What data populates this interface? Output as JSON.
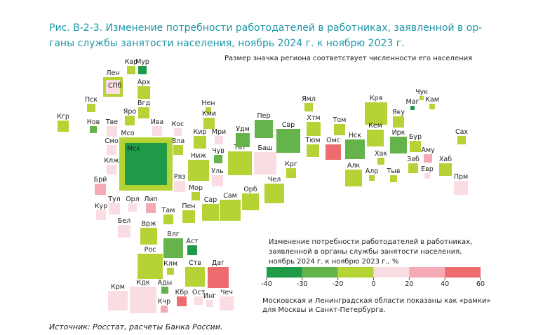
{
  "header": {
    "title_lines": [
      "Рис. В-2-3. Изменение потребности работодателей в работниках, заявленной в ор-",
      "ганы службы занятости населения, ноябрь 2024 г. к ноябрю 2023 г."
    ],
    "note": "Размер значка региона соответствует численности его населения"
  },
  "palette": {
    "dark_green": "#1f9b48",
    "green": "#64b34b",
    "yellow_green": "#b5d334",
    "pale_pink": "#f9dde3",
    "pink": "#f4a9b4",
    "red": "#ee6b6f",
    "frame": "#e3b878"
  },
  "regions": [
    {
      "label": "Кар",
      "color": "yellow_green"
    },
    {
      "label": "Мур",
      "color": "dark_green"
    },
    {
      "label": "Арх",
      "color": "yellow_green"
    },
    {
      "label": "Пск",
      "color": "yellow_green"
    },
    {
      "label": "Вгд",
      "color": "yellow_green"
    },
    {
      "label": "Нов",
      "color": "green"
    },
    {
      "label": "Тве",
      "color": "pale_pink"
    },
    {
      "label": "Яро",
      "color": "yellow_green"
    },
    {
      "label": "Ива",
      "color": "pale_pink"
    },
    {
      "label": "Кос",
      "color": "pale_pink"
    },
    {
      "label": "Кгр",
      "color": "yellow_green"
    },
    {
      "label": "Смо",
      "color": "pale_pink"
    },
    {
      "label": "Вла",
      "color": "yellow_green"
    },
    {
      "label": "Клж",
      "color": "pale_pink"
    },
    {
      "label": "Ряз",
      "color": "pale_pink"
    },
    {
      "label": "Брй",
      "color": "pink"
    },
    {
      "label": "Тул",
      "color": "pale_pink"
    },
    {
      "label": "Орл",
      "color": "pale_pink"
    },
    {
      "label": "Лип",
      "color": "pink"
    },
    {
      "label": "Кур",
      "color": "pale_pink"
    },
    {
      "label": "Бел",
      "color": "pale_pink"
    },
    {
      "label": "Там",
      "color": "yellow_green"
    },
    {
      "label": "Врж",
      "color": "yellow_green"
    },
    {
      "label": "Пен",
      "color": "yellow_green"
    },
    {
      "label": "Влг",
      "color": "green"
    },
    {
      "label": "Аст",
      "color": "dark_green"
    },
    {
      "label": "Рос",
      "color": "yellow_green"
    },
    {
      "label": "Клм",
      "color": "yellow_green"
    },
    {
      "label": "Ств",
      "color": "yellow_green"
    },
    {
      "label": "Даг",
      "color": "red"
    },
    {
      "label": "Ады",
      "color": "green"
    },
    {
      "label": "Кдк",
      "color": "pale_pink"
    },
    {
      "label": "Крм",
      "color": "pale_pink"
    },
    {
      "label": "Кбр",
      "color": "red"
    },
    {
      "label": "Ост",
      "color": "pale_pink"
    },
    {
      "label": "Инг",
      "color": "pale_pink"
    },
    {
      "label": "Чеч",
      "color": "pale_pink"
    },
    {
      "label": "Кчр",
      "color": "pink"
    },
    {
      "label": "Кир",
      "color": "yellow_green"
    },
    {
      "label": "Мри",
      "color": "pale_pink"
    },
    {
      "label": "Ниж",
      "color": "yellow_green"
    },
    {
      "label": "Мор",
      "color": "yellow_green"
    },
    {
      "label": "Чув",
      "color": "green"
    },
    {
      "label": "Уль",
      "color": "pale_pink"
    },
    {
      "label": "Сар",
      "color": "yellow_green"
    },
    {
      "label": "Сам",
      "color": "yellow_green"
    },
    {
      "label": "Тат",
      "color": "yellow_green"
    },
    {
      "label": "Орб",
      "color": "yellow_green"
    },
    {
      "label": "Удм",
      "color": "green"
    },
    {
      "label": "Пер",
      "color": "green"
    },
    {
      "label": "Баш",
      "color": "pale_pink"
    },
    {
      "label": "Чел",
      "color": "yellow_green"
    },
    {
      "label": "Свр",
      "color": "green"
    },
    {
      "label": "Нен",
      "color": "yellow_green"
    },
    {
      "label": "Кми",
      "color": "yellow_green"
    },
    {
      "label": "Крг",
      "color": "yellow_green"
    },
    {
      "label": "Ямл",
      "color": "yellow_green"
    },
    {
      "label": "Хтм",
      "color": "yellow_green"
    },
    {
      "label": "Тюм",
      "color": "yellow_green"
    },
    {
      "label": "Омс",
      "color": "red"
    },
    {
      "label": "Том",
      "color": "yellow_green"
    },
    {
      "label": "Нск",
      "color": "green"
    },
    {
      "label": "Алк",
      "color": "yellow_green"
    },
    {
      "label": "Кря",
      "color": "yellow_green"
    },
    {
      "label": "Кем",
      "color": "yellow_green"
    },
    {
      "label": "Хак",
      "color": "yellow_green"
    },
    {
      "label": "Алр",
      "color": "yellow_green"
    },
    {
      "label": "Тыв",
      "color": "yellow_green"
    },
    {
      "label": "Ирк",
      "color": "green"
    },
    {
      "label": "Яку",
      "color": "yellow_green"
    },
    {
      "label": "Чук",
      "color": "yellow_green"
    },
    {
      "label": "Маг",
      "color": "dark_green"
    },
    {
      "label": "Кам",
      "color": "yellow_green"
    },
    {
      "label": "Бур",
      "color": "yellow_green"
    },
    {
      "label": "Заб",
      "color": "yellow_green"
    },
    {
      "label": "Аму",
      "color": "pink"
    },
    {
      "label": "Евр",
      "color": "pale_pink"
    },
    {
      "label": "Хаб",
      "color": "yellow_green"
    },
    {
      "label": "Прм",
      "color": "pale_pink"
    },
    {
      "label": "Сах",
      "color": "yellow_green"
    }
  ],
  "frames": [
    {
      "label": "Лен",
      "inner": "СПб",
      "color": "yellow_green",
      "inner_color": "pale_pink"
    },
    {
      "label": "Мсо",
      "inner": "Мск",
      "color": "yellow_green",
      "inner_color": "dark_green"
    }
  ],
  "legend": {
    "title_lines": [
      "Изменение потребности работодателей в работниках,",
      "заявленной в органы службы занятости населения,",
      "ноябрь 2024 г. к ноябрю 2023 г., %"
    ],
    "ticks": [
      -40,
      -30,
      -20,
      0,
      20,
      40,
      60
    ],
    "colors": [
      "dark_green",
      "green",
      "yellow_green",
      "pale_pink",
      "pink",
      "red"
    ]
  },
  "footnote_lines": [
    "Московская и Ленинградская области показаны как «рамки»",
    "для Москвы и Санкт-Петербурга."
  ],
  "source": "Источник: Росстат, расчеты Банка России."
}
